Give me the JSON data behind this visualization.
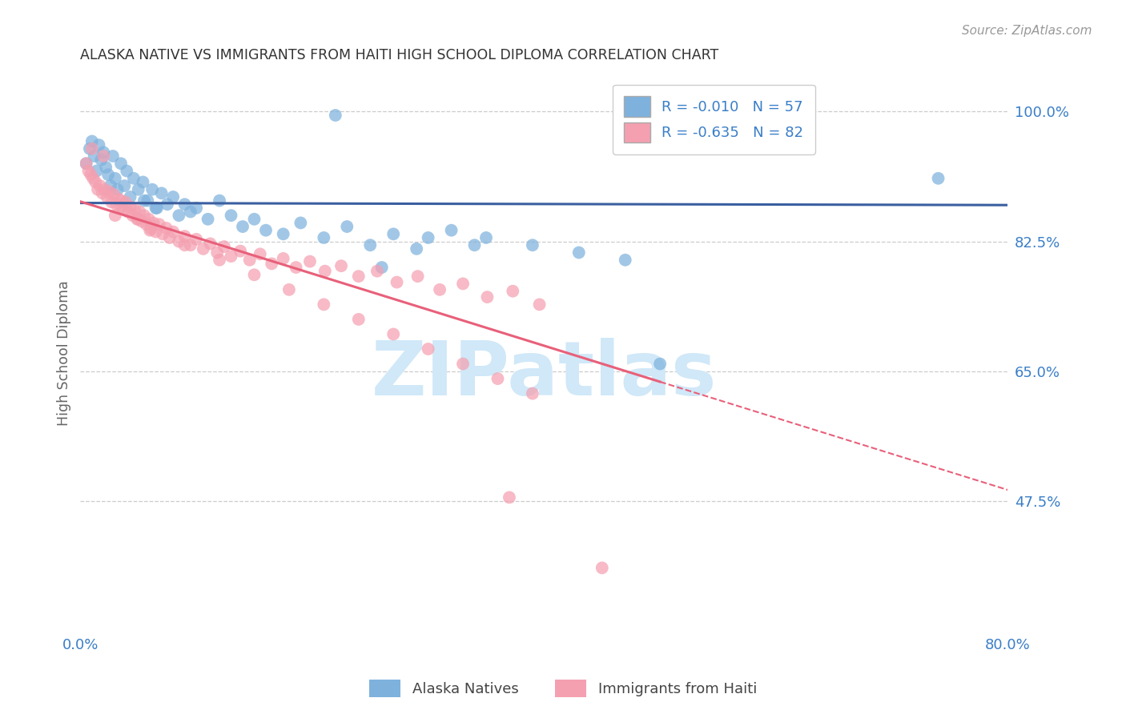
{
  "title": "ALASKA NATIVE VS IMMIGRANTS FROM HAITI HIGH SCHOOL DIPLOMA CORRELATION CHART",
  "source": "Source: ZipAtlas.com",
  "ylabel": "High School Diploma",
  "right_yticks": [
    1.0,
    0.825,
    0.65,
    0.475
  ],
  "right_yticklabels": [
    "100.0%",
    "82.5%",
    "65.0%",
    "47.5%"
  ],
  "xmin": 0.0,
  "xmax": 0.8,
  "ymin": 0.3,
  "ymax": 1.05,
  "r_blue": -0.01,
  "n_blue": 57,
  "r_pink": -0.635,
  "n_pink": 82,
  "blue_color": "#7EB2DD",
  "pink_color": "#F4A0B0",
  "blue_line_color": "#3A5FA0",
  "pink_line_color": "#E8607A",
  "watermark_text": "ZIPatlas",
  "watermark_color": "#D0E8F8",
  "bottom_labels": [
    "Alaska Natives",
    "Immigrants from Haiti"
  ],
  "xtick_color": "#3A7EC8",
  "ytick_color": "#3A7EC8",
  "blue_x": [
    0.005,
    0.008,
    0.01,
    0.012,
    0.014,
    0.016,
    0.018,
    0.02,
    0.022,
    0.024,
    0.026,
    0.028,
    0.03,
    0.032,
    0.035,
    0.038,
    0.04,
    0.043,
    0.046,
    0.05,
    0.054,
    0.058,
    0.062,
    0.066,
    0.07,
    0.075,
    0.08,
    0.085,
    0.09,
    0.095,
    0.1,
    0.11,
    0.12,
    0.13,
    0.14,
    0.15,
    0.16,
    0.175,
    0.19,
    0.21,
    0.23,
    0.25,
    0.27,
    0.29,
    0.32,
    0.35,
    0.39,
    0.43,
    0.47,
    0.22,
    0.26,
    0.3,
    0.34,
    0.5,
    0.74,
    0.055,
    0.065
  ],
  "blue_y": [
    0.93,
    0.95,
    0.96,
    0.94,
    0.92,
    0.955,
    0.935,
    0.945,
    0.925,
    0.915,
    0.9,
    0.94,
    0.91,
    0.895,
    0.93,
    0.9,
    0.92,
    0.885,
    0.91,
    0.895,
    0.905,
    0.88,
    0.895,
    0.87,
    0.89,
    0.875,
    0.885,
    0.86,
    0.875,
    0.865,
    0.87,
    0.855,
    0.88,
    0.86,
    0.845,
    0.855,
    0.84,
    0.835,
    0.85,
    0.83,
    0.845,
    0.82,
    0.835,
    0.815,
    0.84,
    0.83,
    0.82,
    0.81,
    0.8,
    0.995,
    0.79,
    0.83,
    0.82,
    0.66,
    0.91,
    0.88,
    0.87
  ],
  "pink_x": [
    0.005,
    0.007,
    0.009,
    0.011,
    0.013,
    0.015,
    0.017,
    0.019,
    0.021,
    0.023,
    0.025,
    0.027,
    0.029,
    0.031,
    0.033,
    0.035,
    0.037,
    0.039,
    0.041,
    0.043,
    0.045,
    0.047,
    0.049,
    0.051,
    0.053,
    0.055,
    0.057,
    0.059,
    0.061,
    0.063,
    0.065,
    0.068,
    0.071,
    0.074,
    0.077,
    0.08,
    0.085,
    0.09,
    0.095,
    0.1,
    0.106,
    0.112,
    0.118,
    0.124,
    0.13,
    0.138,
    0.146,
    0.155,
    0.165,
    0.175,
    0.186,
    0.198,
    0.211,
    0.225,
    0.24,
    0.256,
    0.273,
    0.291,
    0.31,
    0.33,
    0.351,
    0.373,
    0.396,
    0.03,
    0.06,
    0.09,
    0.12,
    0.15,
    0.18,
    0.21,
    0.24,
    0.27,
    0.3,
    0.33,
    0.36,
    0.39,
    0.01,
    0.02,
    0.035,
    0.05,
    0.37,
    0.45
  ],
  "pink_y": [
    0.93,
    0.92,
    0.915,
    0.91,
    0.905,
    0.895,
    0.9,
    0.89,
    0.895,
    0.885,
    0.892,
    0.878,
    0.888,
    0.875,
    0.882,
    0.872,
    0.868,
    0.878,
    0.865,
    0.872,
    0.86,
    0.868,
    0.855,
    0.865,
    0.852,
    0.86,
    0.848,
    0.855,
    0.842,
    0.85,
    0.838,
    0.848,
    0.835,
    0.843,
    0.83,
    0.838,
    0.825,
    0.832,
    0.82,
    0.828,
    0.815,
    0.822,
    0.81,
    0.818,
    0.805,
    0.812,
    0.8,
    0.808,
    0.795,
    0.802,
    0.79,
    0.798,
    0.785,
    0.792,
    0.778,
    0.785,
    0.77,
    0.778,
    0.76,
    0.768,
    0.75,
    0.758,
    0.74,
    0.86,
    0.84,
    0.82,
    0.8,
    0.78,
    0.76,
    0.74,
    0.72,
    0.7,
    0.68,
    0.66,
    0.64,
    0.62,
    0.95,
    0.94,
    0.88,
    0.855,
    0.48,
    0.385
  ]
}
